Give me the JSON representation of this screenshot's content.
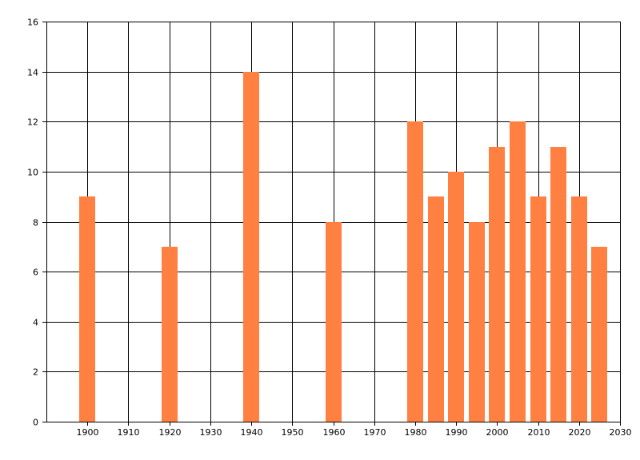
{
  "chart_data": {
    "type": "bar",
    "title": "",
    "xlabel": "",
    "ylabel": "",
    "xlim": [
      1890,
      2030
    ],
    "ylim": [
      0,
      16
    ],
    "x_ticks": [
      1900,
      1910,
      1920,
      1930,
      1940,
      1950,
      1960,
      1970,
      1980,
      1990,
      2000,
      2010,
      2020,
      2030
    ],
    "y_ticks": [
      0,
      2,
      4,
      6,
      8,
      10,
      12,
      14,
      16
    ],
    "grid": true,
    "legend": "none",
    "bar_color": "#FF8040",
    "x": [
      1900,
      1920,
      1940,
      1960,
      1980,
      1985,
      1990,
      1995,
      2000,
      2005,
      2010,
      2015,
      2020,
      2025
    ],
    "values": [
      9,
      7,
      14,
      8,
      12,
      9,
      10,
      8,
      11,
      12,
      9,
      11,
      9,
      7
    ]
  }
}
